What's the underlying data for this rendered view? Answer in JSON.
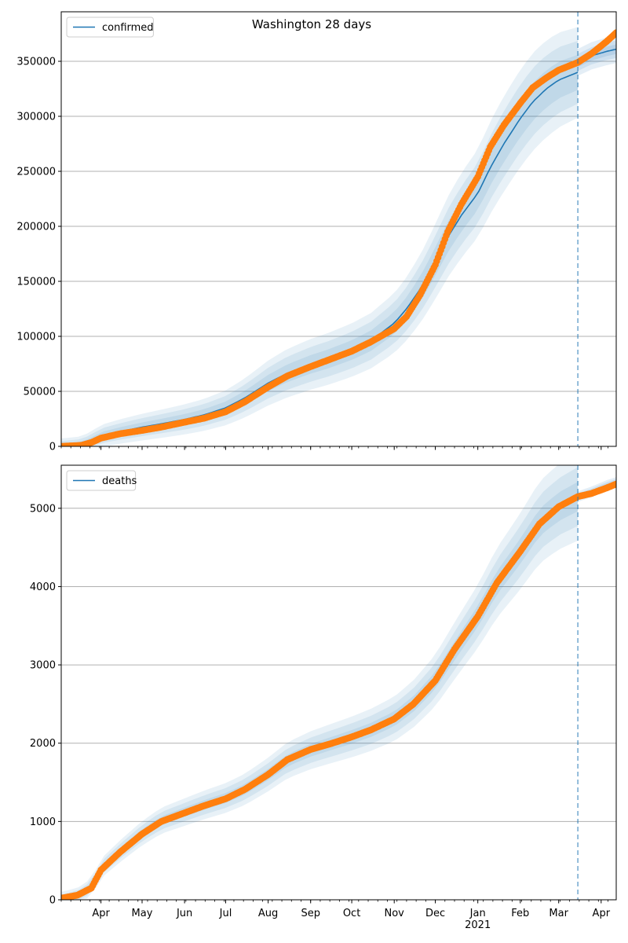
{
  "figure": {
    "title": "Washington 28 days"
  },
  "colors": {
    "model_line": "#1f77b4",
    "band": "#1f77b4",
    "observed": "#ff7f0e",
    "grid": "#b0b0b0",
    "forecast_line": "#1f77b4"
  },
  "chart_data": [
    {
      "type": "line",
      "title": "Washington 28 days",
      "legend": "top-left",
      "grid": "horizontal",
      "xlabel": "",
      "ylabel": "",
      "x_ticks": [
        "Apr",
        "May",
        "Jun",
        "Jul",
        "Aug",
        "Sep",
        "Oct",
        "Nov",
        "Dec",
        "Jan\n2021",
        "Feb",
        "Mar",
        "Apr"
      ],
      "x_tick_dates": [
        "2020-04-01",
        "2020-05-01",
        "2020-06-01",
        "2020-07-01",
        "2020-08-01",
        "2020-09-01",
        "2020-10-01",
        "2020-11-01",
        "2020-12-01",
        "2021-01-01",
        "2021-02-01",
        "2021-03-01",
        "2021-04-01"
      ],
      "xlim": [
        "2020-03-03",
        "2021-04-12"
      ],
      "forecast_start": "2021-03-15",
      "ylim": [
        0,
        395000
      ],
      "y_ticks": [
        0,
        50000,
        100000,
        150000,
        200000,
        250000,
        300000,
        350000
      ],
      "series": [
        {
          "name": "confirmed",
          "kind": "model",
          "points": [
            [
              "2020-03-03",
              0
            ],
            [
              "2020-03-18",
              1500
            ],
            [
              "2020-03-25",
              5000
            ],
            [
              "2020-04-01",
              9500
            ],
            [
              "2020-04-15",
              13500
            ],
            [
              "2020-05-01",
              17500
            ],
            [
              "2020-05-15",
              20500
            ],
            [
              "2020-06-01",
              24500
            ],
            [
              "2020-06-15",
              28500
            ],
            [
              "2020-07-01",
              35000
            ],
            [
              "2020-07-15",
              44000
            ],
            [
              "2020-08-01",
              57500
            ],
            [
              "2020-08-15",
              66500
            ],
            [
              "2020-09-01",
              74500
            ],
            [
              "2020-09-15",
              80000
            ],
            [
              "2020-10-01",
              87500
            ],
            [
              "2020-10-15",
              96000
            ],
            [
              "2020-11-01",
              112000
            ],
            [
              "2020-11-10",
              125000
            ],
            [
              "2020-11-20",
              143000
            ],
            [
              "2020-12-01",
              168000
            ],
            [
              "2020-12-10",
              190000
            ],
            [
              "2020-12-20",
              210000
            ],
            [
              "2021-01-01",
              230000
            ],
            [
              "2021-01-10",
              253000
            ],
            [
              "2021-01-20",
              275000
            ],
            [
              "2021-02-01",
              298000
            ],
            [
              "2021-02-10",
              313000
            ],
            [
              "2021-02-20",
              325000
            ],
            [
              "2021-03-01",
              333000
            ],
            [
              "2021-03-15",
              340000
            ]
          ]
        },
        {
          "name": "",
          "kind": "forecast",
          "points": [
            [
              "2021-03-15",
              349000
            ],
            [
              "2021-03-25",
              355000
            ],
            [
              "2021-04-05",
              359000
            ],
            [
              "2021-04-12",
              361000
            ]
          ]
        },
        {
          "name": "",
          "kind": "observed",
          "points": [
            [
              "2020-03-03",
              0
            ],
            [
              "2020-03-18",
              1000
            ],
            [
              "2020-03-25",
              3500
            ],
            [
              "2020-04-01",
              7500
            ],
            [
              "2020-04-15",
              11500
            ],
            [
              "2020-05-01",
              14500
            ],
            [
              "2020-05-15",
              17500
            ],
            [
              "2020-06-01",
              22000
            ],
            [
              "2020-06-15",
              25500
            ],
            [
              "2020-07-01",
              31500
            ],
            [
              "2020-07-15",
              40500
            ],
            [
              "2020-08-01",
              54000
            ],
            [
              "2020-08-15",
              64000
            ],
            [
              "2020-09-01",
              72500
            ],
            [
              "2020-09-15",
              79000
            ],
            [
              "2020-10-01",
              86500
            ],
            [
              "2020-10-15",
              95000
            ],
            [
              "2020-11-01",
              107000
            ],
            [
              "2020-11-10",
              118000
            ],
            [
              "2020-11-20",
              138000
            ],
            [
              "2020-12-01",
              165000
            ],
            [
              "2020-12-10",
              195000
            ],
            [
              "2020-12-20",
              220000
            ],
            [
              "2021-01-01",
              245000
            ],
            [
              "2021-01-10",
              272000
            ],
            [
              "2021-01-20",
              292000
            ],
            [
              "2021-02-01",
              312000
            ],
            [
              "2021-02-10",
              326000
            ],
            [
              "2021-02-20",
              335000
            ],
            [
              "2021-03-01",
              342000
            ],
            [
              "2021-03-15",
              349000
            ],
            [
              "2021-03-25",
              357000
            ],
            [
              "2021-04-05",
              368000
            ],
            [
              "2021-04-12",
              376000
            ]
          ]
        }
      ],
      "band_halfwidths_model": [
        [
          0.04,
          0.12
        ],
        [
          0.07,
          0.22
        ],
        [
          0.1,
          0.32
        ]
      ],
      "band_halfwidths_forecast": [
        0.012,
        0.022,
        0.035
      ]
    },
    {
      "type": "line",
      "title": "",
      "legend": "top-left",
      "grid": "horizontal",
      "xlabel": "",
      "ylabel": "",
      "x_ticks": [
        "Apr",
        "May",
        "Jun",
        "Jul",
        "Aug",
        "Sep",
        "Oct",
        "Nov",
        "Dec",
        "Jan\n2021",
        "Feb",
        "Mar",
        "Apr"
      ],
      "x_tick_dates": [
        "2020-04-01",
        "2020-05-01",
        "2020-06-01",
        "2020-07-01",
        "2020-08-01",
        "2020-09-01",
        "2020-10-01",
        "2020-11-01",
        "2020-12-01",
        "2021-01-01",
        "2021-02-01",
        "2021-03-01",
        "2021-04-01"
      ],
      "xlim": [
        "2020-03-03",
        "2021-04-12"
      ],
      "forecast_start": "2021-03-15",
      "ylim": [
        0,
        5550
      ],
      "y_ticks": [
        0,
        1000,
        2000,
        3000,
        4000,
        5000
      ],
      "series": [
        {
          "name": "deaths",
          "kind": "model",
          "points": [
            [
              "2020-03-03",
              0
            ],
            [
              "2020-03-15",
              50
            ],
            [
              "2020-03-25",
              160
            ],
            [
              "2020-04-01",
              400
            ],
            [
              "2020-04-15",
              620
            ],
            [
              "2020-05-01",
              850
            ],
            [
              "2020-05-15",
              1010
            ],
            [
              "2020-06-01",
              1120
            ],
            [
              "2020-06-15",
              1210
            ],
            [
              "2020-07-01",
              1300
            ],
            [
              "2020-07-15",
              1410
            ],
            [
              "2020-08-01",
              1600
            ],
            [
              "2020-08-15",
              1780
            ],
            [
              "2020-09-01",
              1910
            ],
            [
              "2020-09-15",
              1990
            ],
            [
              "2020-10-01",
              2080
            ],
            [
              "2020-10-15",
              2170
            ],
            [
              "2020-11-01",
              2310
            ],
            [
              "2020-11-15",
              2500
            ],
            [
              "2020-12-01",
              2800
            ],
            [
              "2020-12-15",
              3180
            ],
            [
              "2021-01-01",
              3620
            ],
            [
              "2021-01-15",
              4050
            ],
            [
              "2021-02-01",
              4450
            ],
            [
              "2021-02-15",
              4820
            ],
            [
              "2021-03-01",
              5020
            ],
            [
              "2021-03-15",
              5150
            ]
          ]
        },
        {
          "name": "",
          "kind": "forecast",
          "points": [
            [
              "2021-03-15",
              5150
            ],
            [
              "2021-03-25",
              5210
            ],
            [
              "2021-04-05",
              5290
            ],
            [
              "2021-04-12",
              5330
            ]
          ]
        },
        {
          "name": "",
          "kind": "observed",
          "points": [
            [
              "2020-03-03",
              20
            ],
            [
              "2020-03-15",
              60
            ],
            [
              "2020-03-25",
              150
            ],
            [
              "2020-04-01",
              380
            ],
            [
              "2020-04-15",
              610
            ],
            [
              "2020-05-01",
              840
            ],
            [
              "2020-05-15",
              1000
            ],
            [
              "2020-06-01",
              1110
            ],
            [
              "2020-06-15",
              1200
            ],
            [
              "2020-07-01",
              1290
            ],
            [
              "2020-07-15",
              1410
            ],
            [
              "2020-08-01",
              1600
            ],
            [
              "2020-08-15",
              1790
            ],
            [
              "2020-09-01",
              1920
            ],
            [
              "2020-09-15",
              1990
            ],
            [
              "2020-10-01",
              2080
            ],
            [
              "2020-10-15",
              2170
            ],
            [
              "2020-11-01",
              2310
            ],
            [
              "2020-11-15",
              2500
            ],
            [
              "2020-12-01",
              2800
            ],
            [
              "2020-12-15",
              3200
            ],
            [
              "2021-01-01",
              3620
            ],
            [
              "2021-01-15",
              4050
            ],
            [
              "2021-02-01",
              4450
            ],
            [
              "2021-02-15",
              4800
            ],
            [
              "2021-03-01",
              5020
            ],
            [
              "2021-03-15",
              5150
            ],
            [
              "2021-03-25",
              5190
            ],
            [
              "2021-04-05",
              5260
            ],
            [
              "2021-04-12",
              5310
            ]
          ]
        }
      ],
      "band_halfwidths_model": [
        [
          0.03,
          0.02
        ],
        [
          0.06,
          0.04
        ],
        [
          0.09,
          0.06
        ]
      ],
      "band_halfwidths_forecast": [
        0.004,
        0.008,
        0.013
      ]
    }
  ]
}
